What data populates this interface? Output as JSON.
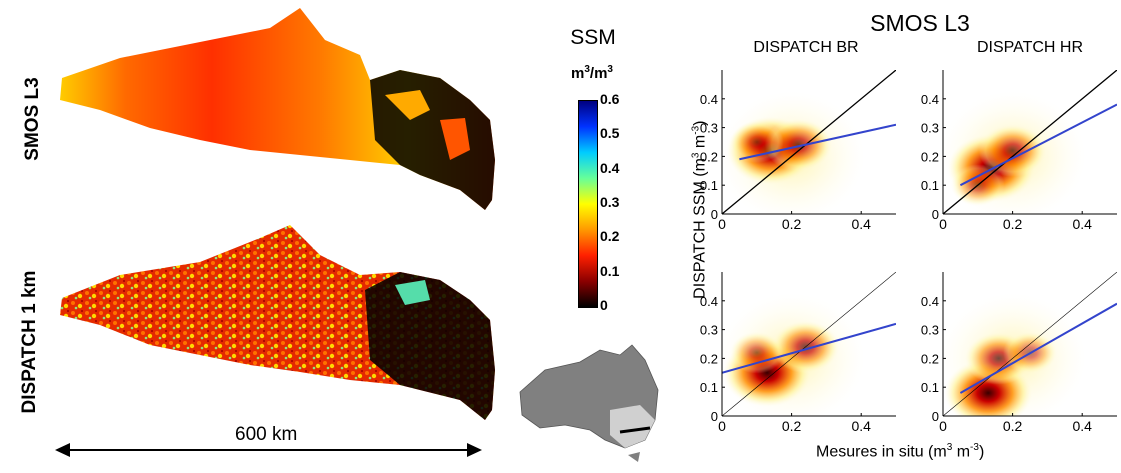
{
  "maps": {
    "row_top_label": "SMOS L3",
    "row_bottom_label": "DISPATCH 1 km",
    "scale_label": "600 km"
  },
  "colorbar": {
    "title": "SSM",
    "unit_base": "m",
    "unit_exp": "3",
    "unit_sep": "/m",
    "unit_exp2": "3",
    "ticks": [
      "0.6",
      "0.5",
      "0.4",
      "0.3",
      "0.2",
      "0.1",
      "0"
    ],
    "colors": [
      "#000000",
      "#8b0000",
      "#ff2000",
      "#ff9900",
      "#ffff00",
      "#66ff99",
      "#00ccff",
      "#0033ff",
      "#000080"
    ]
  },
  "scatter": {
    "main_title": "SMOS L3",
    "col_titles": [
      "DISPATCH BR",
      "DISPATCH HR"
    ],
    "ylabel": "DISPATCH SSM (m",
    "ylabel_mid": " m",
    "ylabel_end": ")",
    "ylabel_exp1": "3",
    "ylabel_exp2": "-3",
    "xlabel": "Mesures in situ (m",
    "xlabel_mid": " m",
    "xlabel_end": ")",
    "xlabel_exp1": "3",
    "xlabel_exp2": "-3"
  },
  "chart_data": [
    {
      "type": "scatter",
      "title": "DISPATCH BR",
      "xlim": [
        0,
        0.5
      ],
      "ylim": [
        0,
        0.5
      ],
      "xticks": [
        "0",
        "0.2",
        "0.4"
      ],
      "yticks": [
        "0",
        "0.1",
        "0.2",
        "0.3",
        "0.4"
      ],
      "regression": {
        "x": [
          0.05,
          0.5
        ],
        "y": [
          0.19,
          0.31
        ]
      },
      "density_centers": [
        {
          "x": 0.14,
          "y": 0.22,
          "w": 1.0
        },
        {
          "x": 0.22,
          "y": 0.24,
          "w": 0.7
        },
        {
          "x": 0.1,
          "y": 0.25,
          "w": 0.5
        }
      ]
    },
    {
      "type": "scatter",
      "title": "DISPATCH HR",
      "xlim": [
        0,
        0.5
      ],
      "ylim": [
        0,
        0.5
      ],
      "xticks": [
        "0",
        "0.2",
        "0.4"
      ],
      "yticks": [
        "0",
        "0.1",
        "0.2",
        "0.3",
        "0.4"
      ],
      "regression": {
        "x": [
          0.05,
          0.5
        ],
        "y": [
          0.1,
          0.38
        ]
      },
      "density_centers": [
        {
          "x": 0.14,
          "y": 0.16,
          "w": 1.0
        },
        {
          "x": 0.2,
          "y": 0.22,
          "w": 0.7
        },
        {
          "x": 0.1,
          "y": 0.1,
          "w": 0.5
        }
      ]
    },
    {
      "type": "scatter",
      "xlim": [
        0,
        0.5
      ],
      "ylim": [
        0,
        0.5
      ],
      "xticks": [
        "0",
        "0.2",
        "0.4"
      ],
      "yticks": [
        "0",
        "0.1",
        "0.2",
        "0.3",
        "0.4"
      ],
      "regression": {
        "x": [
          0,
          0.5
        ],
        "y": [
          0.15,
          0.32
        ]
      },
      "density_centers": [
        {
          "x": 0.13,
          "y": 0.15,
          "w": 1.0
        },
        {
          "x": 0.24,
          "y": 0.24,
          "w": 0.7
        },
        {
          "x": 0.1,
          "y": 0.22,
          "w": 0.5
        }
      ]
    },
    {
      "type": "scatter",
      "xlim": [
        0,
        0.5
      ],
      "ylim": [
        0,
        0.5
      ],
      "xticks": [
        "0",
        "0.2",
        "0.4"
      ],
      "yticks": [
        "0",
        "0.1",
        "0.2",
        "0.3",
        "0.4"
      ],
      "regression": {
        "x": [
          0.05,
          0.5
        ],
        "y": [
          0.08,
          0.39
        ]
      },
      "density_centers": [
        {
          "x": 0.13,
          "y": 0.08,
          "w": 1.0
        },
        {
          "x": 0.16,
          "y": 0.2,
          "w": 0.7
        },
        {
          "x": 0.25,
          "y": 0.22,
          "w": 0.5
        }
      ]
    }
  ]
}
